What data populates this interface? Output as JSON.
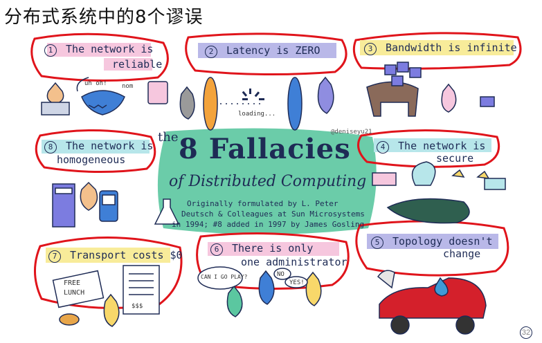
{
  "slide": {
    "title": "分布式系统中的8个谬误",
    "page_number": "32"
  },
  "poster": {
    "credit": "@deniseyu21",
    "heading_the": "the",
    "heading_main": "8 Fallacies",
    "heading_sub": "of Distributed Computing",
    "body_line1": "Originally formulated by L. Peter",
    "body_line2": "Deutsch & Colleagues at Sun Microsystems",
    "body_line3": "in 1994; #8 added in 1997 by James Gosling",
    "fallacies": [
      {
        "num": "1",
        "line1": "The network is",
        "line2": "reliable"
      },
      {
        "num": "2",
        "line1": "Latency is ZERO",
        "line2": ""
      },
      {
        "num": "3",
        "line1": "Bandwidth is infinite",
        "line2": ""
      },
      {
        "num": "4",
        "line1": "The network is",
        "line2": "secure"
      },
      {
        "num": "5",
        "line1": "Topology doesn't",
        "line2": "change"
      },
      {
        "num": "6",
        "line1": "There is only",
        "line2": "one administrator"
      },
      {
        "num": "7",
        "line1": "Transport costs $0",
        "line2": ""
      },
      {
        "num": "8",
        "line1": "The network is",
        "line2": "homogeneous"
      }
    ],
    "doodle_text": {
      "uh_oh": "uh oh!",
      "nom": "nom",
      "loading": "loading...",
      "free_lunch_1": "FREE",
      "free_lunch_2": "LUNCH",
      "can_i_play": "CAN I GO PLAY?",
      "no": "NO",
      "yes": "YES!",
      "receipt": "$$$"
    },
    "colors": {
      "red_annotation": "#e0141b",
      "pink": "#f6c7de",
      "violet": "#b9b8e8",
      "yellow": "#f8ec9a",
      "teal": "#b7e6ea",
      "center_green": "#5bc7a0"
    }
  }
}
